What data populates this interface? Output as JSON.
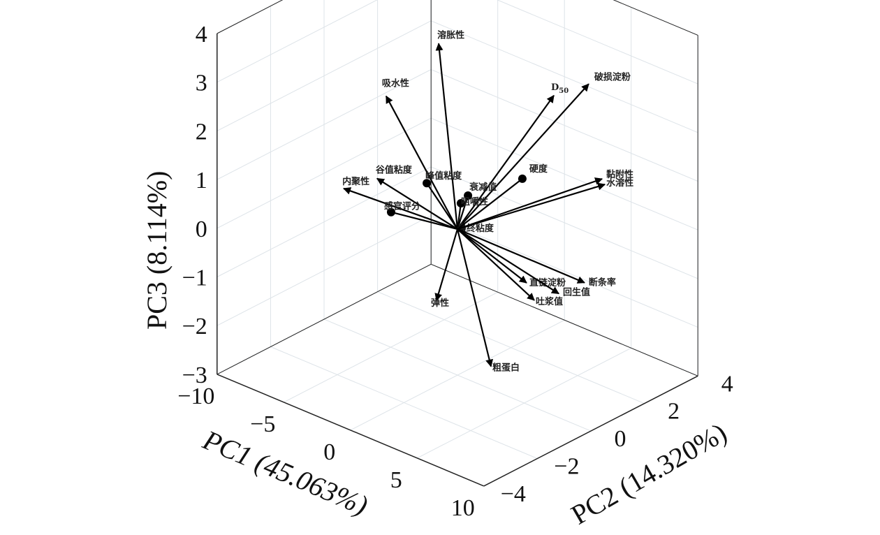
{
  "chart_data": {
    "type": "scatter",
    "subtype": "3d-biplot-vectors",
    "title": "",
    "axes": {
      "x": {
        "label": "PC1 (45.063%)",
        "range": [
          -10,
          10
        ],
        "ticks": [
          -10,
          -5,
          0,
          5,
          10
        ]
      },
      "y": {
        "label": "PC2 (14.320%)",
        "range": [
          -4,
          4
        ],
        "ticks": [
          -4,
          -2,
          0,
          2,
          4
        ]
      },
      "z": {
        "label": "PC3 (8.114%)",
        "range": [
          -3,
          4
        ],
        "ticks": [
          -3,
          -2,
          -1,
          0,
          1,
          2,
          3,
          4
        ]
      }
    },
    "grid": true,
    "vectors": [
      {
        "name": "溶胀性",
        "pc1": -1.41,
        "pc2": 0,
        "pc3": 3.65,
        "marker": "arrow"
      },
      {
        "name": "吸水性",
        "pc1": -3.34,
        "pc2": -1,
        "pc3": 2.63,
        "marker": "arrow"
      },
      {
        "name": "D50",
        "pc1": 5.22,
        "pc2": 1,
        "pc3": 3.06,
        "marker": "arrow"
      },
      {
        "name": "破损淀粉",
        "pc1": 6.83,
        "pc2": 1.5,
        "pc3": 3.34,
        "marker": "arrow"
      },
      {
        "name": "谷值粘度",
        "pc1": -4.02,
        "pc2": -1,
        "pc3": 0.86,
        "marker": "arrow"
      },
      {
        "name": "峰值粘度",
        "pc1": -2.3,
        "pc2": 0,
        "pc3": 0.68,
        "marker": "dot"
      },
      {
        "name": "内聚性",
        "pc1": -4.52,
        "pc2": -2,
        "pc3": 0.88,
        "marker": "arrow"
      },
      {
        "name": "感官评分",
        "pc1": -2.97,
        "pc2": -1,
        "pc3": 0.29,
        "marker": "dot"
      },
      {
        "name": "衰减值",
        "pc1": 0.79,
        "pc2": 0,
        "pc3": 0.78,
        "marker": "dot"
      },
      {
        "name": "咀嚼性",
        "pc1": 0.26,
        "pc2": 0,
        "pc3": 0.56,
        "marker": "dot"
      },
      {
        "name": "最终粘度",
        "pc1": 0.31,
        "pc2": 0,
        "pc3": 0.05,
        "marker": "dot"
      },
      {
        "name": "硬度",
        "pc1": 2.86,
        "pc2": 1,
        "pc3": 1.08,
        "marker": "dot"
      },
      {
        "name": "黏附性",
        "pc1": 6.83,
        "pc2": 2,
        "pc3": 1.25,
        "marker": "arrow"
      },
      {
        "name": "水溶性",
        "pc1": 7.04,
        "pc2": 2,
        "pc3": 1.16,
        "marker": "arrow"
      },
      {
        "name": "直链淀粉",
        "pc1": 5.18,
        "pc2": 0,
        "pc3": -0.51,
        "marker": "arrow"
      },
      {
        "name": "断条率",
        "pc1": 7.52,
        "pc2": 1,
        "pc3": -0.52,
        "marker": "arrow"
      },
      {
        "name": "回生值",
        "pc1": 6.59,
        "pc2": 0.5,
        "pc3": -0.71,
        "marker": "arrow"
      },
      {
        "name": "吐浆值",
        "pc1": 5.76,
        "pc2": 0,
        "pc3": -0.8,
        "marker": "arrow"
      },
      {
        "name": "弹性",
        "pc1": -0.57,
        "pc2": -0.5,
        "pc3": -1.39,
        "marker": "arrow"
      },
      {
        "name": "粗蛋白",
        "pc1": 4.52,
        "pc2": -1,
        "pc3": -2.02,
        "marker": "arrow"
      }
    ]
  }
}
